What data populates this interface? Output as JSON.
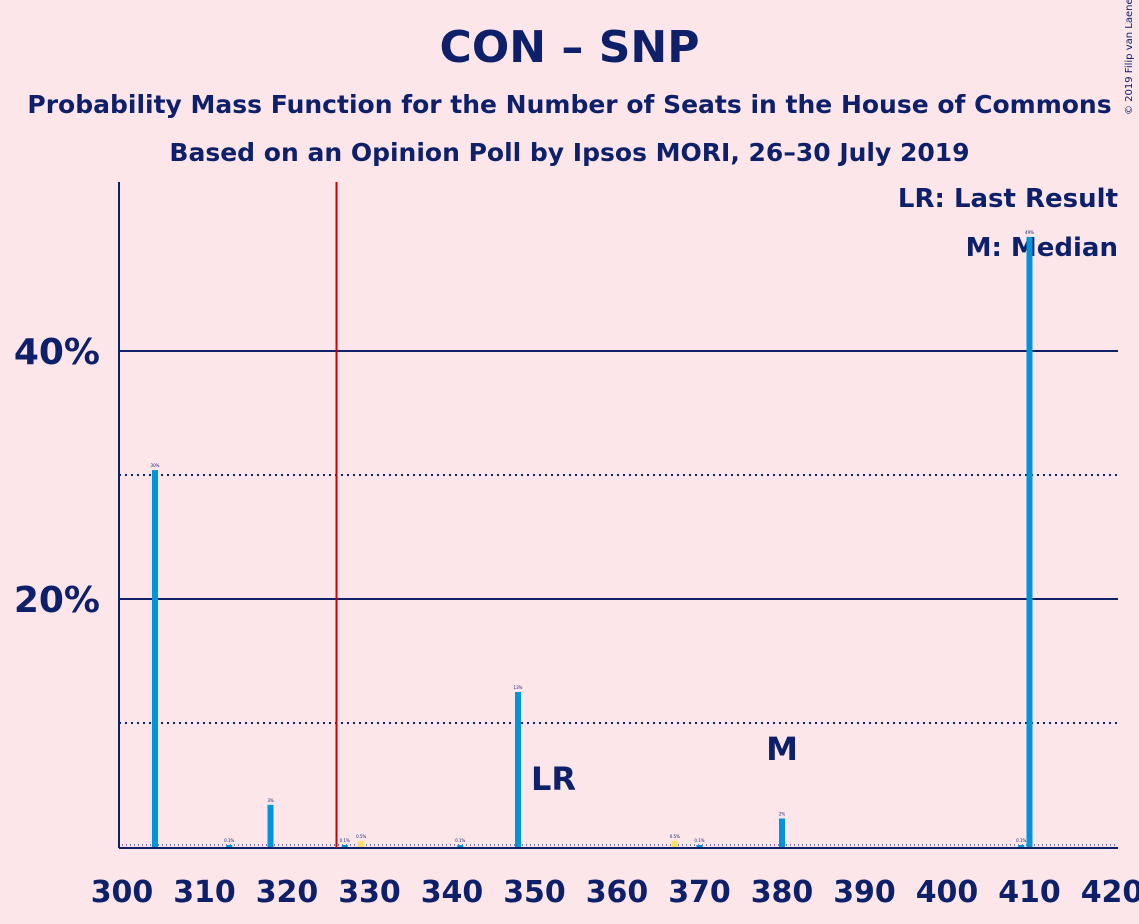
{
  "chart_data": {
    "type": "bar",
    "title": "CON – SNP",
    "subtitle": "Probability Mass Function for the Number of Seats in the House of Commons",
    "subtitle2": "Based on an Opinion Poll by Ipsos MORI, 26–30 July 2019",
    "copyright": "© 2019 Filip van Laenen",
    "legend": {
      "lr": "LR: Last Result",
      "m": "M: Median",
      "position": "top-right"
    },
    "xlim": [
      300,
      420
    ],
    "ylim": [
      0,
      53.5
    ],
    "x_ticks": [
      300,
      310,
      320,
      330,
      340,
      350,
      360,
      370,
      380,
      390,
      400,
      410,
      420
    ],
    "y_ticks": [
      {
        "value": 20,
        "label": "20%"
      },
      {
        "value": 40,
        "label": "40%"
      }
    ],
    "y_minor": [
      10,
      30
    ],
    "majority_line": 326,
    "last_result": 348,
    "median": 380,
    "last_result_label": "LR",
    "median_label": "M",
    "bars": [
      {
        "x": 304,
        "value": 30.4,
        "label": "30%"
      },
      {
        "x": 313,
        "value": 0.1,
        "label": "0.1%"
      },
      {
        "x": 318,
        "value": 3.4,
        "label": "3%"
      },
      {
        "x": 327,
        "value": 0.1,
        "label": "0.1%"
      },
      {
        "x": 329,
        "value": 0.5,
        "label": "0.5%"
      },
      {
        "x": 341,
        "value": 0.1,
        "label": "0.1%"
      },
      {
        "x": 348,
        "value": 12.5,
        "label": "13%"
      },
      {
        "x": 367,
        "value": 0.5,
        "label": "0.5%"
      },
      {
        "x": 370,
        "value": 0.1,
        "label": "0.1%"
      },
      {
        "x": 380,
        "value": 2.3,
        "label": "2%"
      },
      {
        "x": 409,
        "value": 0.1,
        "label": "0.1%"
      },
      {
        "x": 410,
        "value": 49.2,
        "label": "49%"
      }
    ],
    "colors": {
      "background": "#fce6ea",
      "text": "#0d2069",
      "bar": "#0094d8",
      "highlight_bar": "#ffe066",
      "majority_line": "#cc0000"
    }
  }
}
